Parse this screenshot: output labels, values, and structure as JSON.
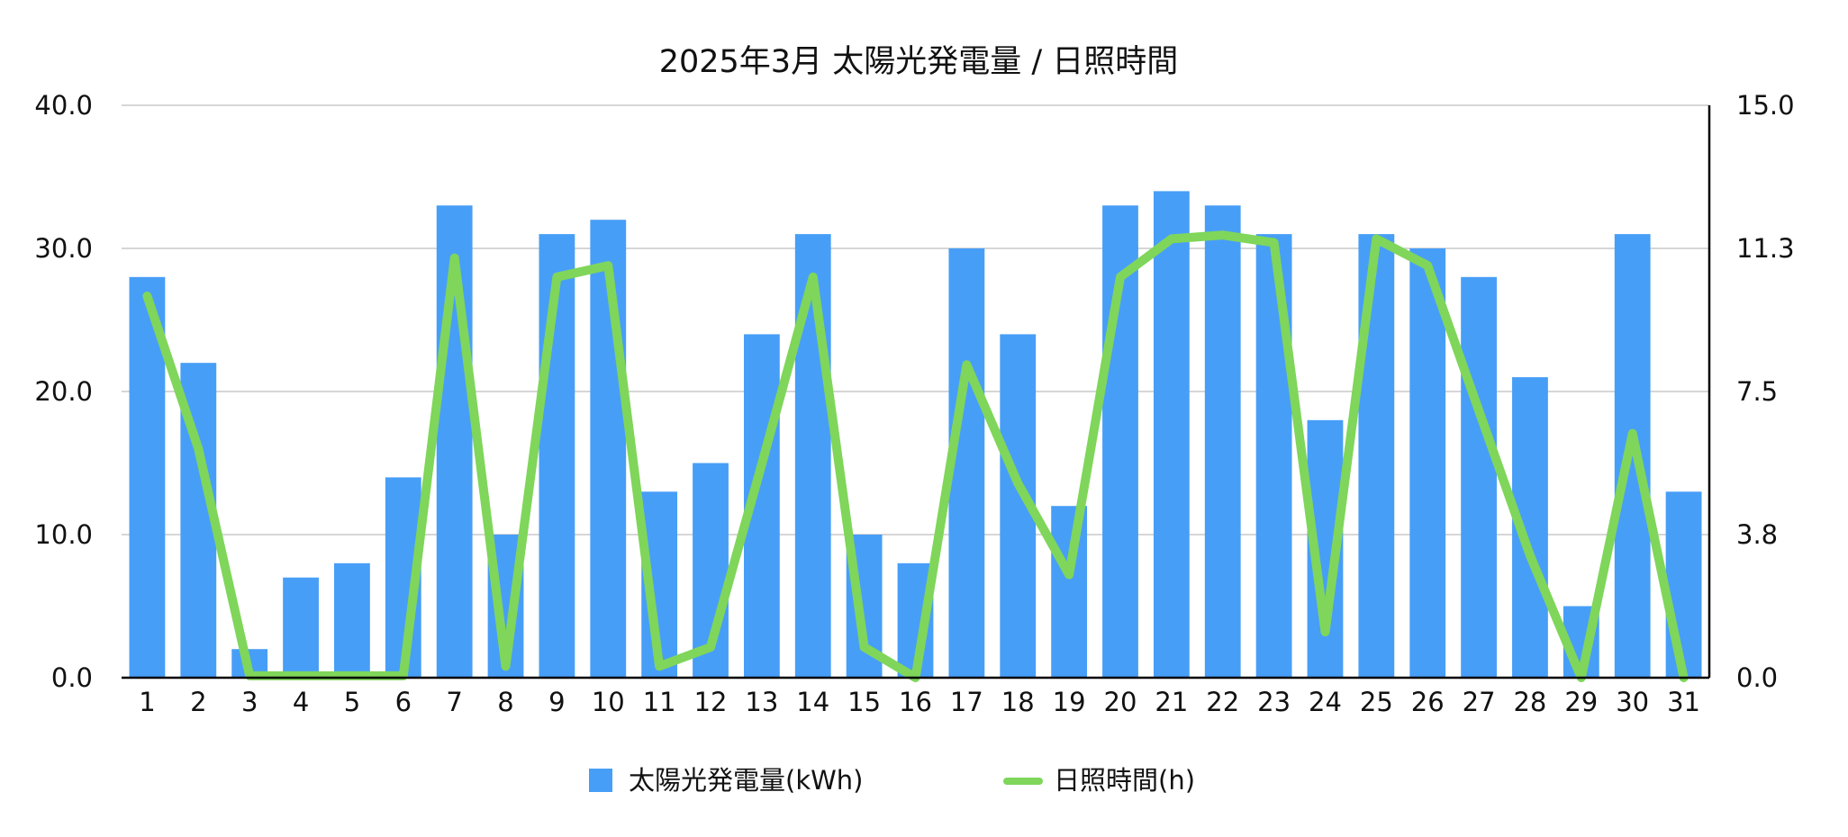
{
  "chart_data": {
    "type": "bar+line",
    "title": "2025年3月 太陽光発電量 / 日照時間",
    "categories": [
      "1",
      "2",
      "3",
      "4",
      "5",
      "6",
      "7",
      "8",
      "9",
      "10",
      "11",
      "12",
      "13",
      "14",
      "15",
      "16",
      "17",
      "18",
      "19",
      "20",
      "21",
      "22",
      "23",
      "24",
      "25",
      "26",
      "27",
      "28",
      "29",
      "30",
      "31"
    ],
    "series": [
      {
        "name": "太陽光発電量(kWh)",
        "type": "bar",
        "axis": "left",
        "color": "#479ef7",
        "values": [
          28,
          22,
          2,
          7,
          8,
          14,
          33,
          10,
          31,
          32,
          13,
          15,
          24,
          31,
          10,
          8,
          30,
          24,
          12,
          33,
          34,
          33,
          31,
          18,
          31,
          30,
          28,
          21,
          5,
          31,
          13
        ]
      },
      {
        "name": "日照時間(h)",
        "type": "line",
        "axis": "right",
        "color": "#7fd65a",
        "values": [
          10.0,
          6.0,
          0.05,
          0.05,
          0.05,
          0.05,
          11.0,
          0.3,
          10.5,
          10.8,
          0.3,
          0.8,
          5.6,
          10.5,
          0.8,
          0.0,
          8.2,
          5.1,
          2.7,
          10.5,
          11.5,
          11.6,
          11.4,
          1.2,
          11.5,
          10.8,
          7.0,
          3.2,
          0.0,
          6.4,
          0.0
        ]
      }
    ],
    "y_left": {
      "min": 0,
      "max": 40,
      "ticks": [
        "0.0",
        "10.0",
        "20.0",
        "30.0",
        "40.0"
      ]
    },
    "y_right": {
      "min": 0,
      "max": 15,
      "ticks": [
        "0.0",
        "3.8",
        "7.5",
        "11.3",
        "15.0"
      ]
    },
    "grid": true,
    "legend": "bottom-center"
  }
}
